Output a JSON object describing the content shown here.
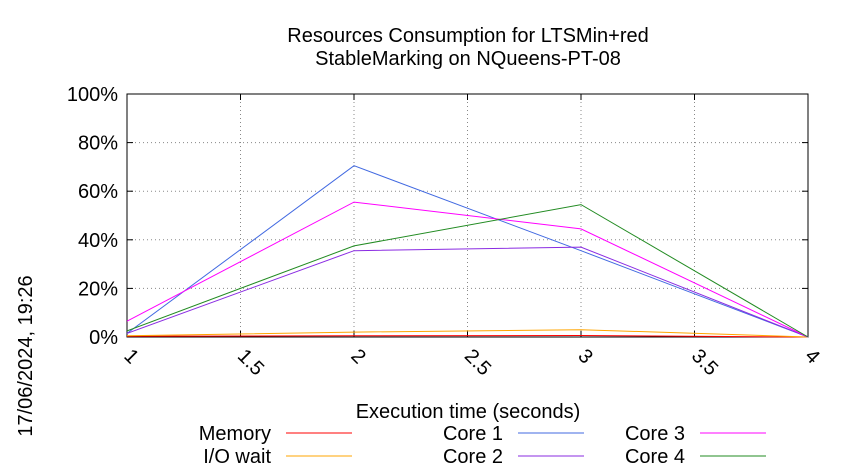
{
  "chart_data": {
    "type": "line",
    "title_line1": "Resources Consumption for LTSMin+red",
    "title_line2": "StableMarking on NQueens-PT-08",
    "xlabel": "Execution time (seconds)",
    "ylabel": "",
    "xlim": [
      1,
      4
    ],
    "ylim": [
      0,
      100
    ],
    "x_ticks": [
      "1",
      "1.5",
      "2",
      "2.5",
      "3",
      "3.5",
      "4"
    ],
    "x_tick_values": [
      1,
      1.5,
      2,
      2.5,
      3,
      3.5,
      4
    ],
    "y_ticks": [
      "0%",
      "20%",
      "40%",
      "60%",
      "80%",
      "100%"
    ],
    "y_tick_values": [
      0,
      20,
      40,
      60,
      80,
      100
    ],
    "grid": true,
    "legend_position": "bottom",
    "x": [
      1,
      2,
      3,
      4
    ],
    "series": [
      {
        "name": "Memory",
        "color": "#ff0000",
        "values": [
          0.3,
          0.5,
          0.6,
          0
        ]
      },
      {
        "name": "I/O wait",
        "color": "#ffa500",
        "values": [
          0.5,
          2,
          3,
          0
        ]
      },
      {
        "name": "Core 1",
        "color": "#4169e1",
        "values": [
          1.5,
          70.5,
          35.5,
          0
        ]
      },
      {
        "name": "Core 2",
        "color": "#8a2be2",
        "values": [
          1.5,
          35.5,
          37,
          0
        ]
      },
      {
        "name": "Core 3",
        "color": "#ff00ff",
        "values": [
          6.5,
          55.5,
          44.5,
          0
        ]
      },
      {
        "name": "Core 4",
        "color": "#228b22",
        "values": [
          2.5,
          37.5,
          54.5,
          0
        ]
      }
    ]
  },
  "timestamp": "17/06/2024, 19:26"
}
